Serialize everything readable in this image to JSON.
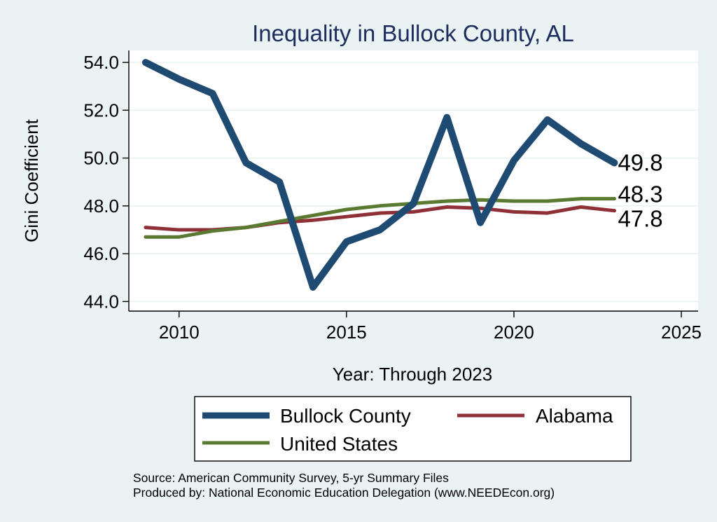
{
  "chart_data": {
    "type": "line",
    "title": "Inequality in Bullock County, AL",
    "xlabel": "Year: Through 2023",
    "ylabel": "Gini Coefficient",
    "xlim": [
      2008.5,
      2025.5
    ],
    "ylim": [
      43.6,
      54.5
    ],
    "x_ticks": [
      2010,
      2015,
      2020,
      2025
    ],
    "x_tick_labels": [
      "2010",
      "2015",
      "2020",
      "2025"
    ],
    "y_ticks": [
      44,
      46,
      48,
      50,
      52,
      54
    ],
    "y_tick_labels": [
      "44.0",
      "46.0",
      "48.0",
      "50.0",
      "52.0",
      "54.0"
    ],
    "grid": true,
    "x": [
      2009,
      2010,
      2011,
      2012,
      2013,
      2014,
      2015,
      2016,
      2017,
      2018,
      2019,
      2020,
      2021,
      2022,
      2023
    ],
    "series": [
      {
        "name": "Bullock County",
        "color": "#1f4b73",
        "values": [
          54.0,
          53.3,
          52.7,
          49.8,
          49.0,
          44.6,
          46.5,
          47.0,
          48.1,
          51.7,
          47.3,
          49.9,
          51.6,
          50.6,
          49.8
        ],
        "end_label": "49.8"
      },
      {
        "name": "Alabama",
        "color": "#8f3036",
        "values": [
          47.1,
          47.0,
          47.0,
          47.1,
          47.3,
          47.4,
          47.55,
          47.7,
          47.75,
          47.95,
          47.9,
          47.75,
          47.7,
          47.95,
          47.8
        ],
        "end_label": "47.8"
      },
      {
        "name": "United States",
        "color": "#5a7a32",
        "values": [
          46.7,
          46.7,
          46.95,
          47.1,
          47.35,
          47.6,
          47.85,
          48.0,
          48.1,
          48.2,
          48.25,
          48.2,
          48.2,
          48.3,
          48.3
        ],
        "end_label": "48.3"
      }
    ],
    "legend": {
      "position": "bottom",
      "entries": [
        "Bullock County",
        "Alabama",
        "United States"
      ]
    }
  },
  "source": {
    "line1": "Source: American Community Survey, 5-yr Summary Files",
    "line2": "Produced by: National Economic Education Delegation (www.NEEDEcon.org)"
  },
  "colors": {
    "background": "#eaf2f3",
    "plot_background": "#ffffff",
    "title": "#1c2d5e"
  }
}
